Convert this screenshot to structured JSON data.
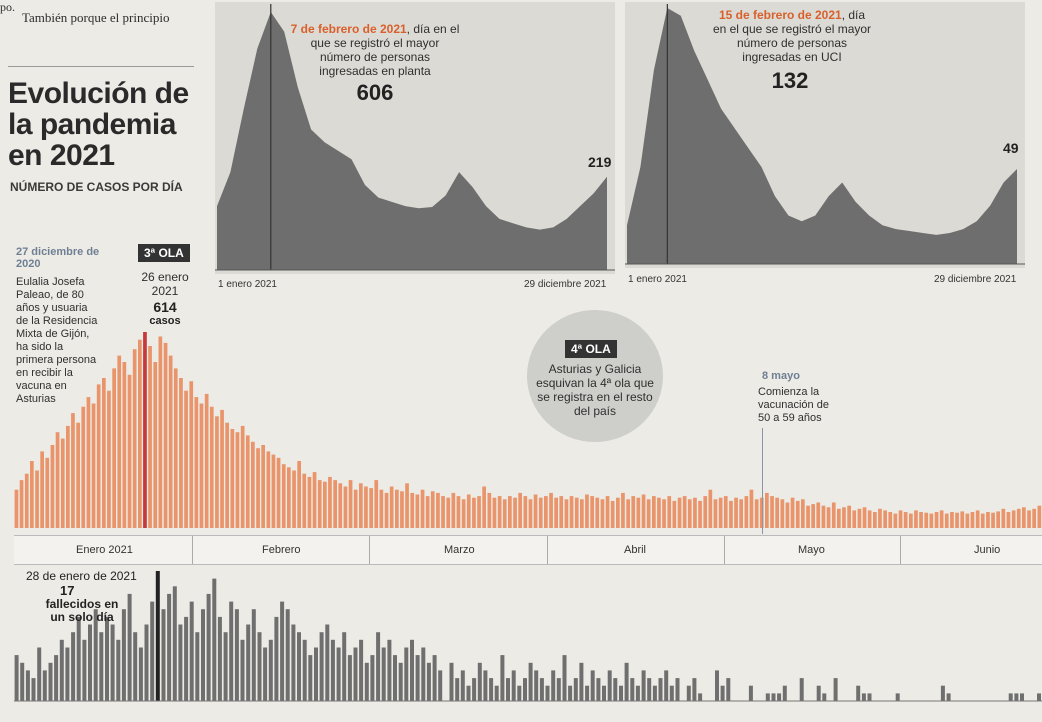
{
  "header": {
    "line1": "po.",
    "line2": "También porque el principio"
  },
  "title": "Evolución de la pandemia en 2021",
  "subtitle": "NÚMERO DE CASOS POR DÍA",
  "colors": {
    "cases": "#e9946a",
    "peak_bar": "#c5383b",
    "deaths": "#6f6f6f",
    "hospital": "#6e6e6e",
    "highlight": "#d9602b"
  },
  "hospital_panel": {
    "peak_date": "7 de febrero de 2021",
    "peak_text": ", día en el que se registró el mayor número de personas ingresadas en planta",
    "peak_value": "606",
    "end_value": "219",
    "x_start": "1 enero 2021",
    "x_end": "29 diciembre 2021"
  },
  "icu_panel": {
    "peak_date": "15 de febrero de 2021",
    "peak_text": ", día en el que se registró el mayor número de personas ingresadas en UCI",
    "peak_value": "132",
    "end_value": "49",
    "x_start": "1 enero 2021",
    "x_end": "29 diciembre 2021"
  },
  "notes": {
    "vaccine_date": "27 diciembre de 2020",
    "vaccine_text": "Eulalia Josefa Paleao, de 80 años y usuaria de la Residencia Mixta de Gijón, ha sido la primera persona en recibir la vacuna en Asturias",
    "wave3_badge": "3ª OLA",
    "wave3_date": "26 enero 2021",
    "wave3_value": "614",
    "wave3_unit": "casos",
    "wave4_badge": "4ª OLA",
    "wave4_text": "Asturias y Galicia esquivan la 4ª ola que se registra en el resto del país",
    "may_date": "8 mayo",
    "may_text": "Comienza la vacunación de 50 a 59 años",
    "deaths_date": "28 de enero de 2021",
    "deaths_value": "17",
    "deaths_text": "fallecidos en un solo día"
  },
  "months": [
    "Enero 2021",
    "Febrero",
    "Marzo",
    "Abril",
    "Mayo",
    "Junio"
  ],
  "chart_data": [
    {
      "type": "area",
      "name": "hospital",
      "x_start": "1 enero 2021",
      "x_end": "29 diciembre 2021",
      "peak": {
        "date": "7 de febrero de 2021",
        "value": 606
      },
      "end_value": 219,
      "values": [
        150,
        230,
        380,
        520,
        606,
        560,
        430,
        330,
        300,
        280,
        260,
        200,
        170,
        160,
        150,
        145,
        148,
        175,
        230,
        195,
        150,
        120,
        110,
        100,
        95,
        100,
        120,
        150,
        180,
        219
      ]
    },
    {
      "type": "area",
      "name": "uci",
      "x_start": "1 enero 2021",
      "x_end": "29 diciembre 2021",
      "peak": {
        "date": "15 de febrero de 2021",
        "value": 132
      },
      "end_value": 49,
      "values": [
        20,
        50,
        100,
        132,
        128,
        110,
        95,
        80,
        70,
        60,
        50,
        35,
        25,
        22,
        25,
        35,
        42,
        32,
        25,
        20,
        18,
        17,
        16,
        15,
        16,
        18,
        22,
        30,
        42,
        49
      ]
    },
    {
      "type": "bar",
      "name": "casos",
      "peak": {
        "date": "26 enero 2021",
        "value": 614
      },
      "values": [
        120,
        150,
        170,
        210,
        180,
        240,
        220,
        260,
        300,
        280,
        320,
        360,
        330,
        380,
        410,
        390,
        450,
        470,
        430,
        500,
        540,
        520,
        480,
        560,
        590,
        614,
        570,
        520,
        600,
        580,
        540,
        500,
        470,
        430,
        460,
        410,
        390,
        420,
        380,
        350,
        370,
        330,
        310,
        300,
        320,
        290,
        270,
        250,
        260,
        240,
        230,
        220,
        200,
        190,
        180,
        210,
        170,
        160,
        175,
        150,
        145,
        160,
        150,
        140,
        130,
        150,
        120,
        140,
        130,
        125,
        150,
        120,
        110,
        130,
        120,
        115,
        140,
        110,
        105,
        120,
        100,
        115,
        110,
        100,
        95,
        110,
        100,
        90,
        105,
        95,
        100,
        130,
        110,
        95,
        100,
        90,
        100,
        95,
        110,
        100,
        90,
        105,
        95,
        100,
        110,
        95,
        100,
        90,
        100,
        95,
        90,
        105,
        100,
        95,
        90,
        100,
        85,
        95,
        110,
        90,
        100,
        95,
        105,
        90,
        100,
        95,
        90,
        100,
        85,
        95,
        100,
        90,
        95,
        85,
        100,
        120,
        90,
        95,
        100,
        85,
        95,
        90,
        100,
        120,
        90,
        95,
        110,
        100,
        95,
        90,
        80,
        95,
        85,
        90,
        70,
        75,
        80,
        70,
        65,
        80,
        60,
        65,
        70,
        55,
        60,
        65,
        55,
        50,
        60,
        55,
        50,
        45,
        55,
        50,
        45,
        55,
        50,
        48,
        45,
        50,
        55,
        45,
        50,
        48,
        52,
        45,
        50,
        55,
        45,
        50,
        48,
        52,
        60,
        50,
        55,
        60,
        65,
        55,
        60,
        70
      ]
    },
    {
      "type": "bar",
      "name": "fallecidos",
      "peak": {
        "date": "28 de enero de 2021",
        "value": 17
      },
      "values": [
        6,
        5,
        4,
        3,
        7,
        4,
        5,
        6,
        8,
        7,
        9,
        11,
        8,
        10,
        12,
        9,
        11,
        10,
        8,
        12,
        14,
        9,
        7,
        10,
        13,
        17,
        12,
        14,
        15,
        10,
        11,
        13,
        9,
        12,
        14,
        16,
        11,
        9,
        13,
        12,
        8,
        10,
        12,
        9,
        7,
        8,
        11,
        13,
        12,
        10,
        9,
        8,
        6,
        7,
        9,
        10,
        8,
        7,
        9,
        6,
        7,
        8,
        5,
        6,
        9,
        7,
        8,
        6,
        5,
        7,
        8,
        6,
        7,
        5,
        6,
        4,
        0,
        5,
        3,
        4,
        2,
        3,
        5,
        4,
        3,
        2,
        6,
        3,
        4,
        2,
        3,
        5,
        4,
        3,
        2,
        4,
        3,
        6,
        2,
        3,
        5,
        2,
        4,
        3,
        2,
        4,
        3,
        2,
        5,
        3,
        2,
        4,
        3,
        2,
        3,
        4,
        2,
        3,
        0,
        2,
        3,
        1,
        0,
        0,
        4,
        2,
        3,
        0,
        0,
        0,
        2,
        0,
        0,
        1,
        1,
        1,
        2,
        0,
        0,
        3,
        0,
        0,
        2,
        1,
        0,
        3,
        0,
        0,
        0,
        2,
        1,
        1,
        0,
        0,
        0,
        0,
        1,
        0,
        0,
        0,
        0,
        0,
        0,
        0,
        2,
        1,
        0,
        0,
        0,
        0,
        0,
        0,
        0,
        0,
        0,
        0,
        1,
        1,
        1,
        0,
        0,
        1
      ]
    }
  ]
}
